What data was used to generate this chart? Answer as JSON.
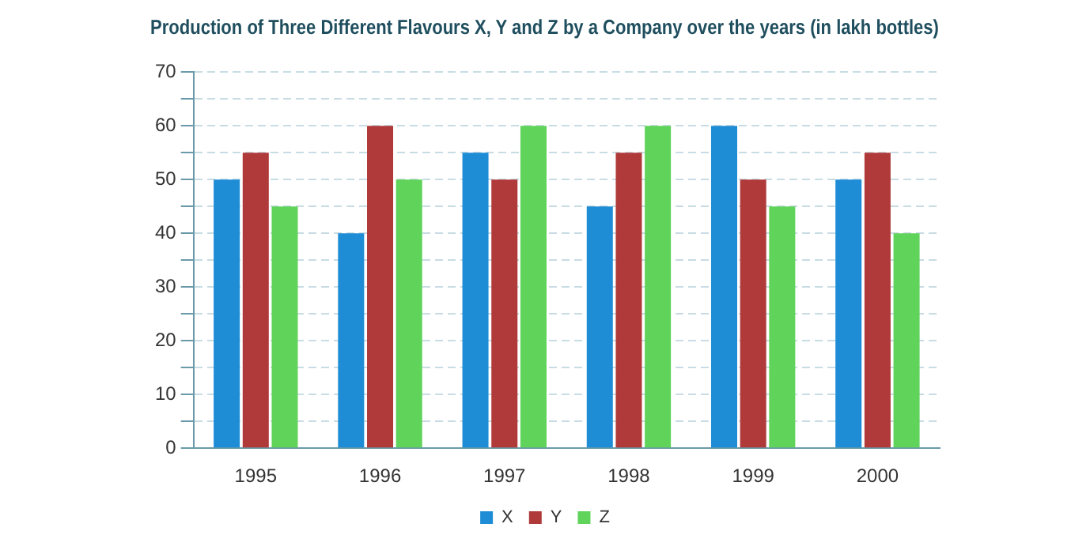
{
  "chart_data": {
    "type": "bar",
    "title": "Production of Three Different Flavours X, Y and Z by a Company over the years (in lakh bottles)",
    "categories": [
      "1995",
      "1996",
      "1997",
      "1998",
      "1999",
      "2000"
    ],
    "series": [
      {
        "name": "X",
        "color": "#1f8dd6",
        "values": [
          50,
          40,
          55,
          45,
          60,
          50
        ]
      },
      {
        "name": "Y",
        "color": "#b03a3a",
        "values": [
          55,
          60,
          50,
          55,
          50,
          55
        ]
      },
      {
        "name": "Z",
        "color": "#5fd35a",
        "values": [
          45,
          50,
          60,
          60,
          45,
          40
        ]
      }
    ],
    "ylim": [
      0,
      70
    ],
    "yticks": [
      0,
      {
        "value": 5,
        "label": null
      },
      10,
      {
        "value": 15,
        "label": null
      },
      20,
      {
        "value": 25,
        "label": null
      },
      30,
      {
        "value": 35,
        "label": null
      },
      40,
      {
        "value": 45,
        "label": null
      },
      50,
      {
        "value": 55,
        "label": null
      },
      60,
      {
        "value": 65,
        "label": null
      },
      70
    ],
    "grid": "y",
    "legend": "bottom"
  }
}
